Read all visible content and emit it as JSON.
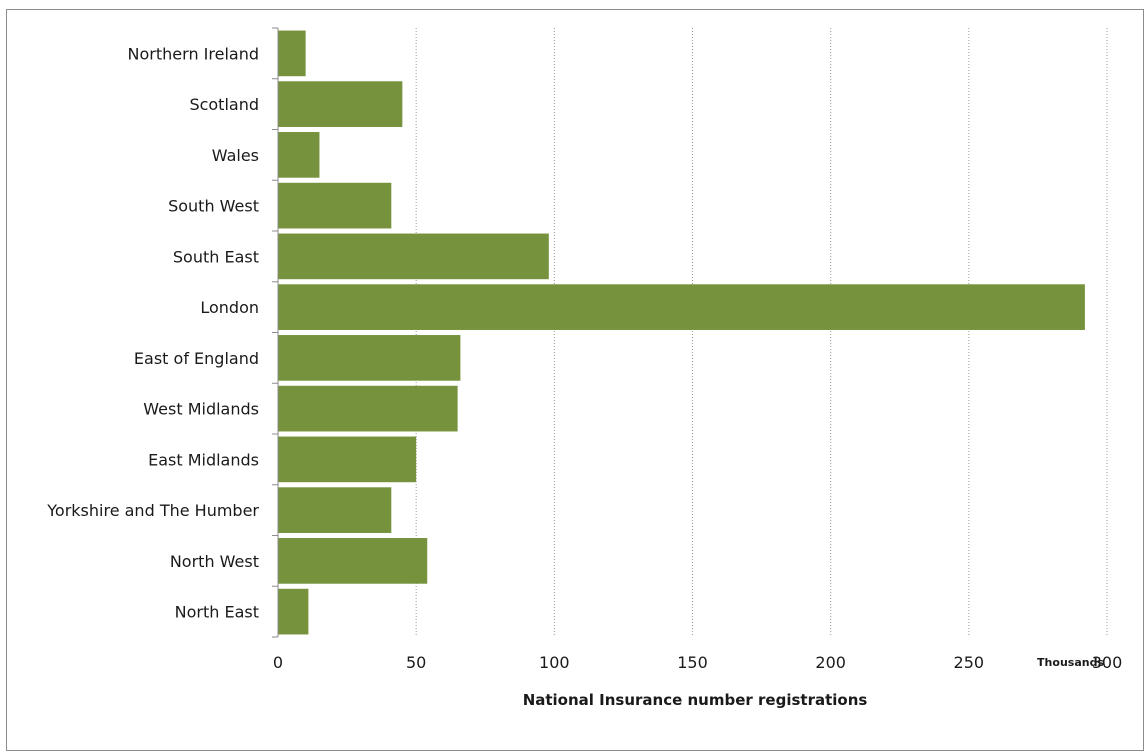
{
  "chart_data": {
    "type": "bar",
    "orientation": "horizontal",
    "title": "",
    "categories": [
      "North East",
      "North West",
      "Yorkshire and The Humber",
      "East Midlands",
      "West Midlands",
      "East of England",
      "London",
      "South East",
      "South West",
      "Wales",
      "Scotland",
      "Northern Ireland"
    ],
    "values": [
      11,
      54,
      41,
      50,
      65,
      66,
      292,
      98,
      41,
      15,
      45,
      10
    ],
    "xlabel": "National Insurance number registrations",
    "x_units": "Thousands",
    "ylabel": "",
    "xlim": [
      0,
      300
    ],
    "xticks": [
      0,
      50,
      100,
      150,
      200,
      250,
      300
    ],
    "grid": "vertical dotted",
    "legend": "none",
    "bar_color": "#76923c"
  }
}
